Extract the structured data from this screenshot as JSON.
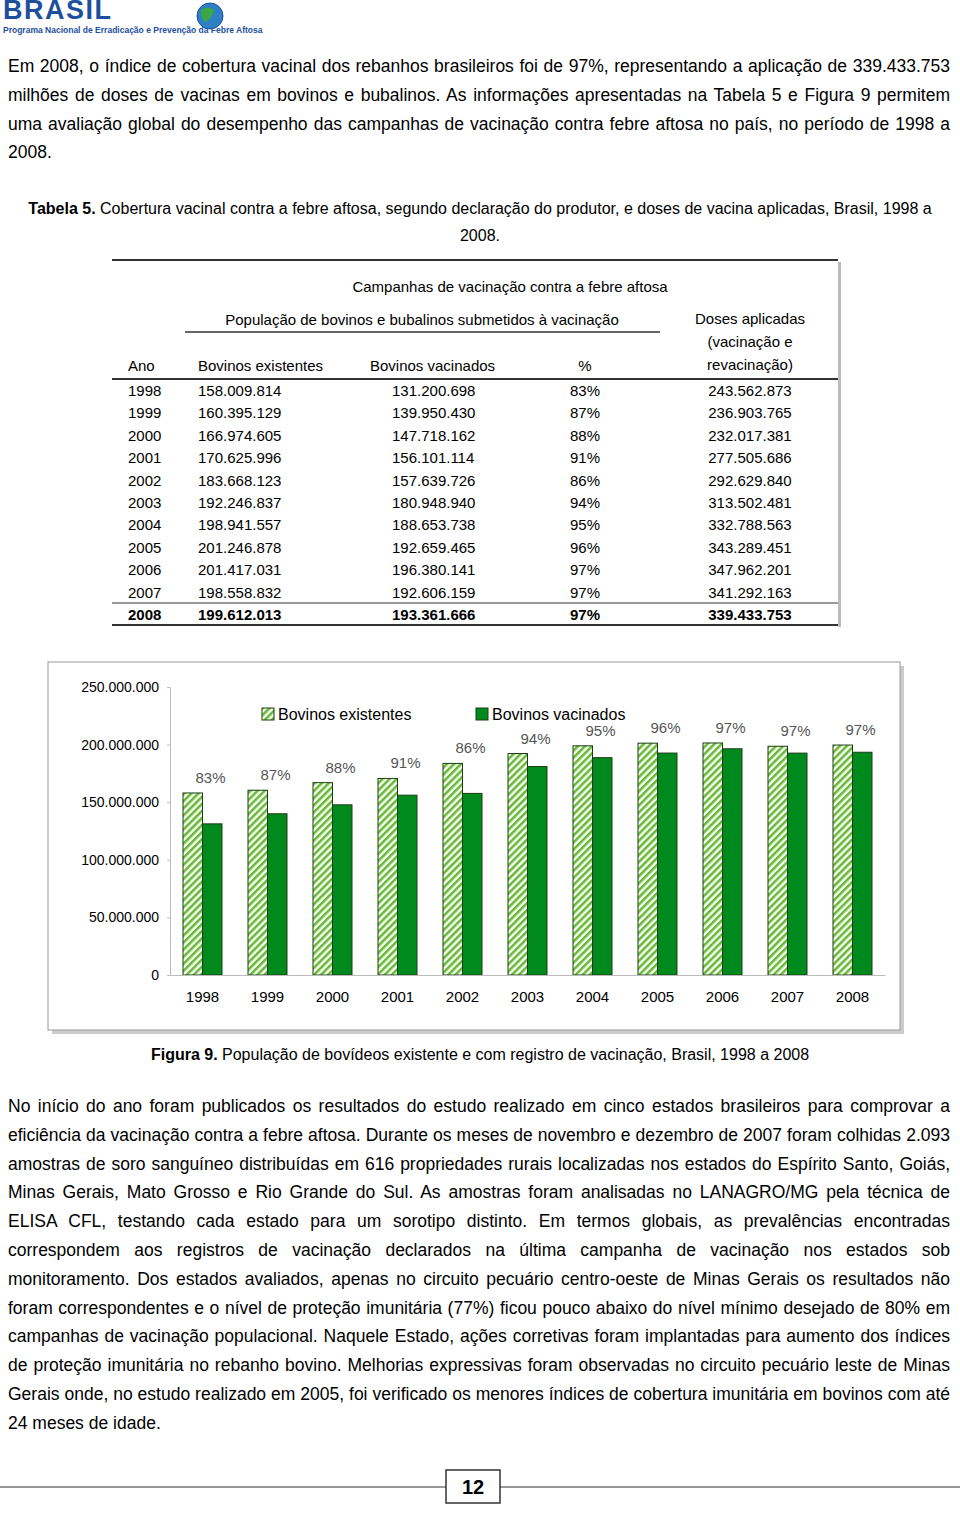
{
  "header": {
    "title": "BRASIL",
    "subtitle": "Programa Nacional de Erradicação e Prevenção da Febre Aftosa"
  },
  "intro": "Em 2008, o índice de cobertura vacinal dos rebanhos brasileiros foi de 97%, representando a aplicação de 339.433.753 milhões de doses de vacinas em bovinos e bubalinos. As informações apresentadas na Tabela 5 e Figura 9 permitem uma avaliação global do desempenho das campanhas de vacinação contra febre aftosa no país, no período de 1998 a 2008.",
  "table": {
    "label": "Tabela 5.",
    "caption": "Cobertura vacinal contra a febre aftosa, segundo declaração do produtor, e doses de vacina aplicadas, Brasil, 1998 a 2008.",
    "group_header": "Campanhas de vacinação contra a febre aftosa",
    "subgroup_header": "População de bovinos e bubalinos submetidos à vacinação",
    "doses_header": [
      "Doses aplicadas",
      "(vacinação e",
      "revacinação)"
    ],
    "columns": [
      "Ano",
      "Bovinos existentes",
      "Bovinos vacinados",
      "%"
    ],
    "rows": [
      [
        "1998",
        "158.009.814",
        "131.200.698",
        "83%",
        "243.562.873"
      ],
      [
        "1999",
        "160.395.129",
        "139.950.430",
        "87%",
        "236.903.765"
      ],
      [
        "2000",
        "166.974.605",
        "147.718.162",
        "88%",
        "232.017.381"
      ],
      [
        "2001",
        "170.625.996",
        "156.101.114",
        "91%",
        "277.505.686"
      ],
      [
        "2002",
        "183.668.123",
        "157.639.726",
        "86%",
        "292.629.840"
      ],
      [
        "2003",
        "192.246.837",
        "180.948.940",
        "94%",
        "313.502.481"
      ],
      [
        "2004",
        "198.941.557",
        "188.653.738",
        "95%",
        "332.788.563"
      ],
      [
        "2005",
        "201.246.878",
        "192.659.465",
        "96%",
        "343.289.451"
      ],
      [
        "2006",
        "201.417.031",
        "196.380.141",
        "97%",
        "347.962.201"
      ],
      [
        "2007",
        "198.558.832",
        "192.606.159",
        "97%",
        "341.292.163"
      ],
      [
        "2008",
        "199.612.013",
        "193.361.666",
        "97%",
        "339.433.753"
      ]
    ]
  },
  "chart_data": {
    "type": "bar",
    "categories": [
      "1998",
      "1999",
      "2000",
      "2001",
      "2002",
      "2003",
      "2004",
      "2005",
      "2006",
      "2007",
      "2008"
    ],
    "series": [
      {
        "name": "Bovinos existentes",
        "color": "#66bb33",
        "values": [
          158009814,
          160395129,
          166974605,
          170625996,
          183668123,
          192246837,
          198941557,
          201246878,
          201417031,
          198558832,
          199612013
        ]
      },
      {
        "name": "Bovinos vacinados",
        "color": "#008a1e",
        "values": [
          131200698,
          139950430,
          147718162,
          156101114,
          157639726,
          180948940,
          188653738,
          192659465,
          196380141,
          192606159,
          193361666
        ]
      }
    ],
    "annotations": [
      "83%",
      "87%",
      "88%",
      "91%",
      "86%",
      "94%",
      "95%",
      "96%",
      "97%",
      "97%",
      "97%"
    ],
    "ylim": [
      0,
      250000000
    ],
    "yticks": [
      0,
      {
        "value": 50000000,
        "label": "50.000.000"
      },
      {
        "value": 100000000,
        "label": "100.000.000"
      },
      {
        "value": 150000000,
        "label": "150.000.000"
      },
      {
        "value": 200000000,
        "label": "200.000.000"
      },
      {
        "value": 250000000,
        "label": "250.000.000"
      }
    ],
    "grid": false,
    "legend": "top"
  },
  "figure": {
    "label": "Figura 9.",
    "caption": "População de bovídeos existente e com registro de vacinação, Brasil, 1998 a 2008"
  },
  "body": "No início do ano foram publicados os resultados do estudo realizado em cinco estados brasileiros para comprovar a eficiência da vacinação contra a febre aftosa. Durante os meses de novembro e dezembro de 2007 foram colhidas 2.093 amostras de soro sanguíneo distribuídas em 616 propriedades rurais localizadas nos estados do Espírito Santo, Goiás, Minas Gerais, Mato Grosso e Rio Grande do Sul. As amostras foram analisadas no LANAGRO/MG pela técnica de ELISA CFL, testando cada estado para um sorotipo distinto.  Em termos globais, as prevalências encontradas correspondem aos registros de vacinação declarados na última campanha de vacinação nos estados sob monitoramento. Dos estados avaliados, apenas no circuito pecuário centro-oeste de Minas Gerais os resultados não foram correspondentes e o nível de proteção imunitária (77%) ficou pouco abaixo do nível mínimo desejado de 80% em campanhas de vacinação populacional. Naquele Estado, ações corretivas foram implantadas para aumento dos índices de proteção imunitária no rebanho bovino. Melhorias expressivas foram observadas no circuito pecuário leste de Minas Gerais onde, no estudo realizado em 2005, foi verificado os menores índices de cobertura imunitária em bovinos com até 24 meses de idade.",
  "page_number": "12"
}
